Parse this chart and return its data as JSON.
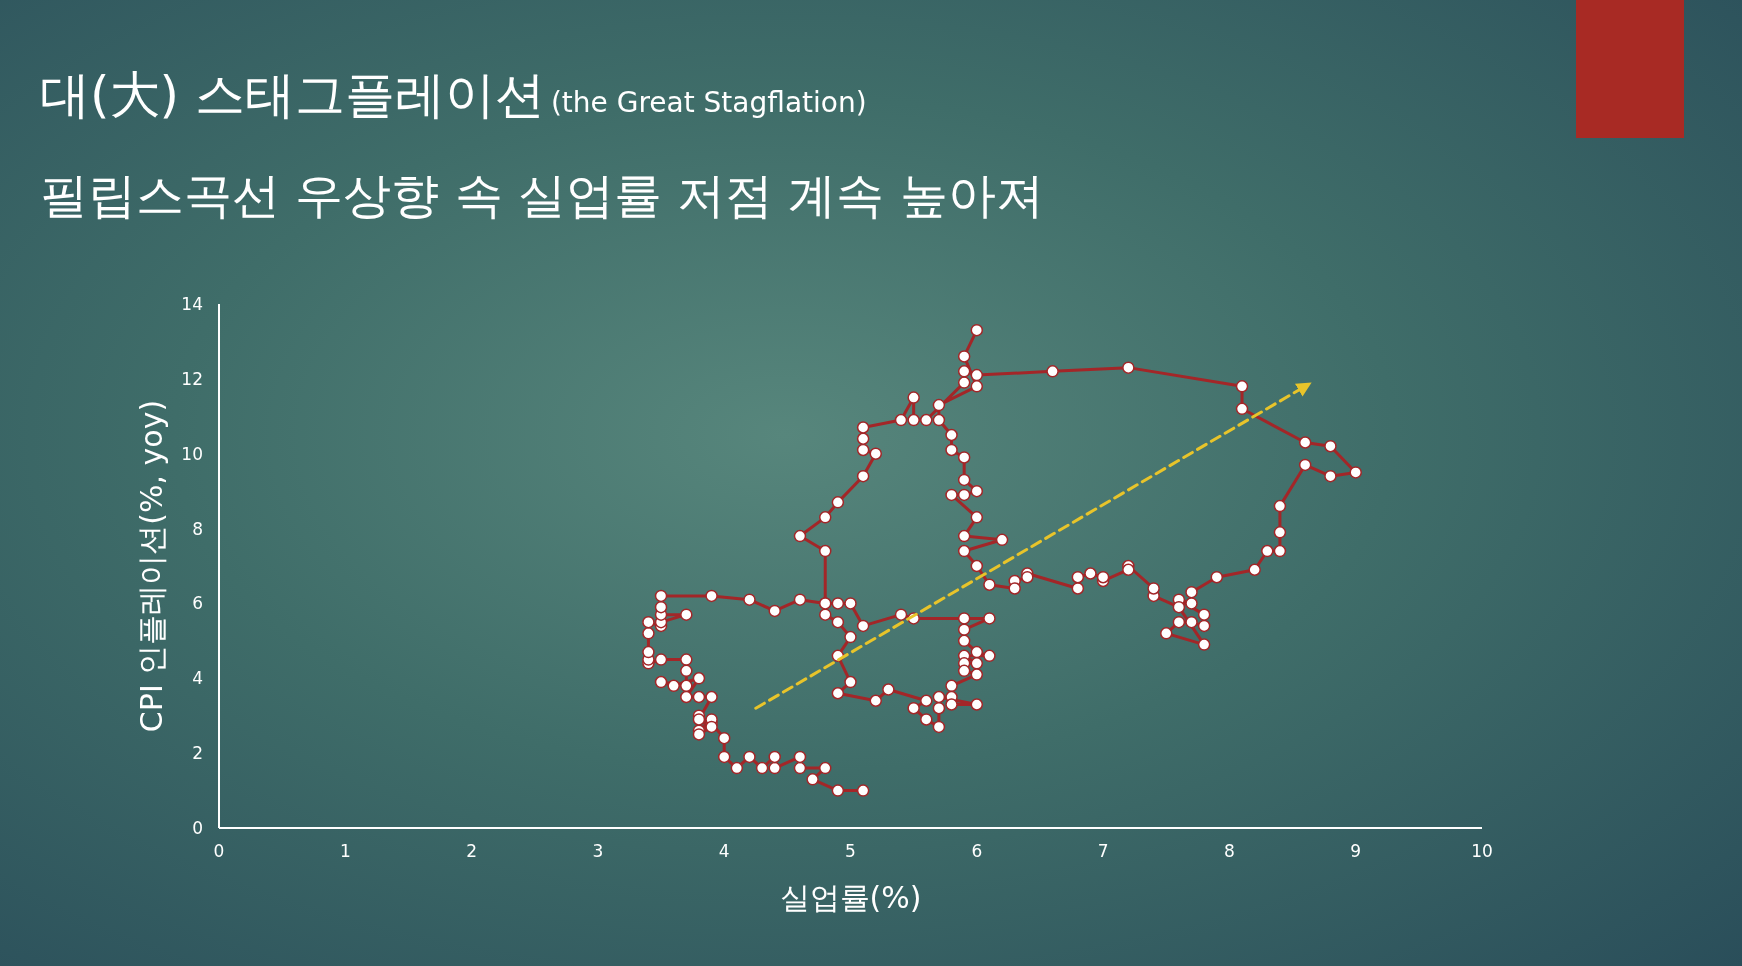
{
  "chart_data": {
    "type": "line",
    "title": "대(大) 스태그플레이션",
    "subtitle": "필립스곡선 우상향 속 실업률 저점 계속 높아져",
    "annotations": [
      "(the Great Stagflation)"
    ],
    "xlabel": "실업률(%)",
    "ylabel": "CPI 인플레이션(%, yoy)",
    "xlim": [
      0,
      10
    ],
    "ylim": [
      0,
      14
    ],
    "xticks": [
      0,
      1,
      2,
      3,
      4,
      5,
      6,
      7,
      8,
      9,
      10
    ],
    "yticks": [
      0,
      2,
      4,
      6,
      8,
      10,
      12,
      14
    ],
    "marker": "circle",
    "series": [
      {
        "color": "#a32628",
        "x": [
          5.1,
          4.9,
          4.7,
          4.8,
          4.6,
          4.6,
          4.4,
          4.4,
          4.3,
          4.2,
          4.1,
          4.0,
          4.0,
          3.9,
          3.8,
          3.8,
          3.9,
          3.8,
          3.9,
          3.8,
          3.9,
          3.8,
          3.7,
          3.8,
          3.6,
          3.5,
          3.7,
          3.7,
          3.7,
          3.5,
          3.4,
          3.4,
          3.4,
          3.4,
          3.4,
          3.5,
          3.5,
          3.7,
          3.5,
          3.5,
          3.5,
          3.9,
          4.2,
          4.4,
          4.6,
          4.8,
          4.9,
          5.0,
          5.1,
          5.4,
          5.5,
          5.9,
          6.1,
          5.9,
          5.9,
          6.0,
          6.1,
          5.9,
          6.0,
          5.9,
          5.9,
          6.0,
          5.8,
          5.8,
          5.8,
          6.0,
          5.7,
          5.7,
          5.7,
          5.6,
          5.5,
          5.6,
          5.3,
          5.2,
          4.9,
          5.0,
          4.9,
          5.0,
          4.9,
          4.8,
          4.8,
          4.8,
          4.6,
          4.8,
          4.9,
          5.1,
          5.2,
          5.1,
          5.1,
          5.1,
          5.4,
          5.5,
          5.5,
          5.6,
          5.9,
          5.9,
          6.0,
          6.6,
          7.2,
          8.1,
          8.1,
          8.6,
          8.8,
          9.0,
          8.8,
          8.6,
          8.4,
          8.4,
          8.4,
          8.3,
          8.2,
          7.9,
          7.7,
          7.7,
          7.6,
          7.8,
          7.8,
          7.7,
          7.6,
          7.5,
          7.8,
          7.6,
          7.4,
          7.4,
          7.2,
          7.2,
          7.0,
          7.0,
          6.9,
          6.8,
          6.8,
          6.4,
          6.4,
          6.3,
          6.3,
          6.1,
          6.0,
          5.9,
          6.2,
          5.9,
          6.0,
          5.8,
          5.9,
          6.0,
          5.9,
          5.9,
          5.8,
          5.8,
          5.7,
          5.7,
          6.0,
          5.9,
          6.0
        ],
        "values": [
          1.0,
          1.0,
          1.3,
          1.6,
          1.6,
          1.9,
          1.6,
          1.9,
          1.6,
          1.9,
          1.6,
          1.9,
          2.4,
          2.8,
          3.0,
          2.6,
          2.9,
          2.5,
          2.7,
          2.9,
          3.5,
          3.5,
          3.5,
          4.0,
          3.8,
          3.9,
          3.8,
          4.2,
          4.5,
          4.5,
          4.4,
          4.5,
          4.7,
          5.2,
          5.5,
          5.4,
          5.5,
          5.7,
          5.7,
          5.9,
          6.2,
          6.2,
          6.1,
          5.8,
          6.1,
          6.0,
          6.0,
          6.0,
          5.4,
          5.7,
          5.6,
          5.6,
          5.6,
          5.3,
          5.0,
          4.7,
          4.6,
          4.6,
          4.4,
          4.4,
          4.2,
          4.1,
          3.8,
          3.5,
          3.3,
          3.3,
          3.5,
          3.2,
          2.7,
          2.9,
          3.2,
          3.4,
          3.7,
          3.4,
          3.6,
          3.9,
          4.6,
          5.1,
          5.5,
          5.7,
          6.0,
          7.4,
          7.8,
          8.3,
          8.7,
          9.4,
          10.0,
          10.1,
          10.4,
          10.7,
          10.9,
          11.5,
          10.9,
          10.9,
          11.9,
          12.2,
          12.1,
          12.2,
          12.3,
          11.8,
          11.2,
          10.3,
          10.2,
          9.5,
          9.4,
          9.7,
          8.6,
          7.9,
          7.4,
          7.4,
          6.9,
          6.7,
          6.3,
          6.0,
          6.1,
          5.7,
          5.4,
          5.5,
          5.5,
          5.2,
          4.9,
          5.9,
          6.2,
          6.4,
          7.0,
          6.9,
          6.6,
          6.7,
          6.8,
          6.7,
          6.4,
          6.8,
          6.7,
          6.6,
          6.4,
          6.5,
          7.0,
          7.4,
          7.7,
          7.8,
          8.3,
          8.9,
          8.9,
          9.0,
          9.3,
          9.9,
          10.1,
          10.5,
          10.9,
          11.3,
          11.8,
          12.6,
          13.3
        ]
      },
      {
        "type": "line",
        "color": "#e8c42a",
        "line_style": "dashed",
        "marker": "none",
        "x": [
          4.25,
          8.6
        ],
        "values": [
          3.2,
          11.8
        ]
      }
    ]
  }
}
